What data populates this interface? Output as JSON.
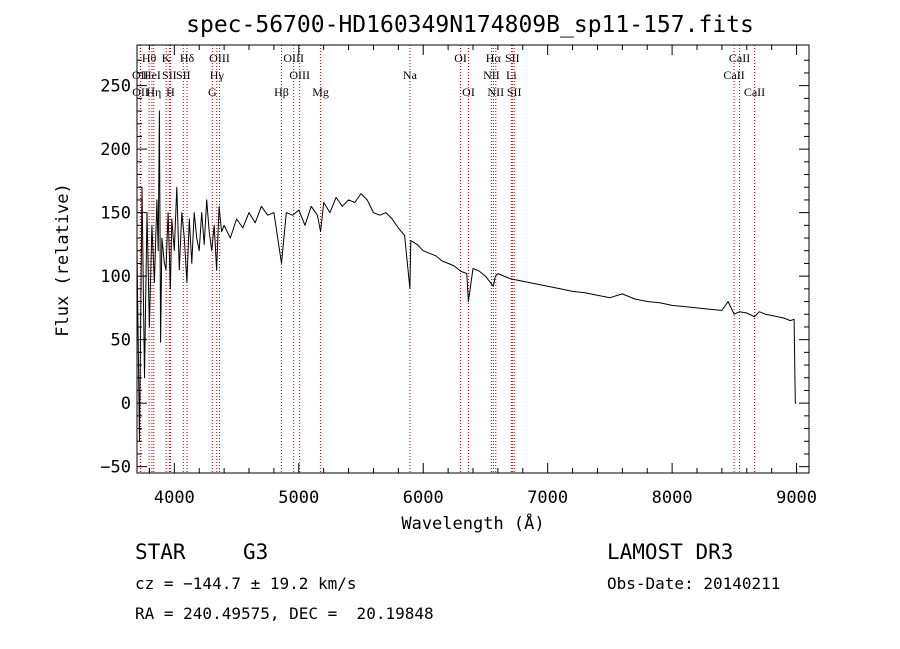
{
  "chart_data": {
    "type": "line",
    "title": "spec-56700-HD160349N174809B_sp11-157.fits",
    "xlabel": "Wavelength (Å)",
    "ylabel": "Flux (relative)",
    "xlim": [
      3700,
      9100
    ],
    "ylim": [
      -55,
      282
    ],
    "x_ticks": [
      4000,
      5000,
      6000,
      7000,
      8000,
      9000
    ],
    "x_tick_labels": [
      "4000",
      "5000",
      "6000",
      "7000",
      "8000",
      "9000"
    ],
    "y_ticks": [
      -50,
      0,
      50,
      100,
      150,
      200,
      250
    ],
    "y_tick_labels": [
      "−50",
      "0",
      "50",
      "100",
      "150",
      "200",
      "250"
    ],
    "grid": false,
    "series": [
      {
        "name": "spectrum",
        "color": "#000000",
        "x": [
          3700,
          3720,
          3740,
          3760,
          3780,
          3800,
          3820,
          3840,
          3860,
          3870,
          3880,
          3890,
          3900,
          3920,
          3933,
          3950,
          3968,
          3980,
          4000,
          4020,
          4040,
          4060,
          4080,
          4101,
          4120,
          4140,
          4160,
          4180,
          4200,
          4220,
          4240,
          4260,
          4280,
          4300,
          4320,
          4340,
          4360,
          4380,
          4400,
          4450,
          4500,
          4550,
          4600,
          4650,
          4700,
          4750,
          4800,
          4861,
          4900,
          4950,
          5000,
          5050,
          5100,
          5150,
          5175,
          5200,
          5250,
          5300,
          5350,
          5400,
          5450,
          5500,
          5550,
          5600,
          5650,
          5700,
          5750,
          5800,
          5850,
          5893,
          5900,
          5950,
          6000,
          6050,
          6100,
          6150,
          6200,
          6250,
          6300,
          6350,
          6363,
          6400,
          6450,
          6500,
          6563,
          6580,
          6600,
          6650,
          6700,
          6750,
          6800,
          6900,
          7000,
          7100,
          7200,
          7300,
          7400,
          7500,
          7600,
          7700,
          7800,
          7900,
          8000,
          8100,
          8200,
          8300,
          8400,
          8450,
          8498,
          8542,
          8600,
          8662,
          8700,
          8750,
          8800,
          8850,
          8900,
          8950,
          8980,
          8990,
          8998
        ],
        "y": [
          120,
          -30,
          170,
          20,
          150,
          60,
          140,
          95,
          160,
          120,
          230,
          48,
          130,
          110,
          105,
          150,
          90,
          145,
          120,
          170,
          105,
          150,
          130,
          95,
          145,
          110,
          150,
          130,
          120,
          150,
          125,
          160,
          135,
          120,
          140,
          105,
          155,
          135,
          140,
          130,
          145,
          138,
          150,
          142,
          155,
          148,
          150,
          110,
          150,
          148,
          152,
          140,
          155,
          148,
          135,
          158,
          150,
          162,
          155,
          160,
          158,
          165,
          160,
          150,
          148,
          150,
          145,
          138,
          132,
          90,
          128,
          125,
          120,
          118,
          116,
          112,
          110,
          108,
          104,
          102,
          80,
          106,
          104,
          100,
          92,
          100,
          102,
          100,
          98,
          97,
          96,
          94,
          92,
          90,
          88,
          87,
          85,
          83,
          86,
          82,
          80,
          79,
          77,
          76,
          75,
          74,
          73,
          80,
          70,
          72,
          71,
          68,
          72,
          70,
          69,
          68,
          67,
          65,
          66,
          0,
          0
        ]
      }
    ],
    "line_markers": [
      {
        "label": "OII",
        "x": 3727,
        "row": 2
      },
      {
        "label": "Hθ",
        "x": 3797,
        "row": 1
      },
      {
        "label": "OII",
        "x": 3729,
        "row": 3
      },
      {
        "label": "HeI",
        "x": 3820,
        "row": 2
      },
      {
        "label": "Hη",
        "x": 3835,
        "row": 3
      },
      {
        "label": "K",
        "x": 3934,
        "row": 1
      },
      {
        "label": "SII",
        "x": 3960,
        "row": 2
      },
      {
        "label": "H",
        "x": 3969,
        "row": 3
      },
      {
        "label": "Hδ",
        "x": 4102,
        "row": 1
      },
      {
        "label": "SII",
        "x": 4072,
        "row": 2
      },
      {
        "label": "OIII",
        "x": 4363,
        "row": 1
      },
      {
        "label": "Hγ",
        "x": 4341,
        "row": 2
      },
      {
        "label": "G",
        "x": 4305,
        "row": 3
      },
      {
        "label": "OIII",
        "x": 4959,
        "row": 1
      },
      {
        "label": "OIII",
        "x": 5007,
        "row": 2
      },
      {
        "label": "Hβ",
        "x": 4861,
        "row": 3
      },
      {
        "label": "Mg",
        "x": 5175,
        "row": 3
      },
      {
        "label": "Na",
        "x": 5893,
        "row": 2
      },
      {
        "label": "OI",
        "x": 6300,
        "row": 1
      },
      {
        "label": "OI",
        "x": 6364,
        "row": 3
      },
      {
        "label": "Hα",
        "x": 6563,
        "row": 1
      },
      {
        "label": "SII",
        "x": 6716,
        "row": 1
      },
      {
        "label": "NII",
        "x": 6548,
        "row": 2
      },
      {
        "label": "Li",
        "x": 6708,
        "row": 2
      },
      {
        "label": "NII",
        "x": 6583,
        "row": 3
      },
      {
        "label": "SII",
        "x": 6731,
        "row": 3
      },
      {
        "label": "CaII",
        "x": 8542,
        "row": 1
      },
      {
        "label": "CaII",
        "x": 8498,
        "row": 2
      },
      {
        "label": "CaII",
        "x": 8662,
        "row": 3
      }
    ],
    "marker_color": "#c00000"
  },
  "info": {
    "object_class": "STAR",
    "subclass": "G3",
    "survey": "LAMOST DR3",
    "redshift_text": "cz = −144.7 ± 19.2 km/s",
    "obs_date": "Obs-Date: 20140211",
    "coords": "RA = 240.49575, DEC =  20.19848"
  }
}
